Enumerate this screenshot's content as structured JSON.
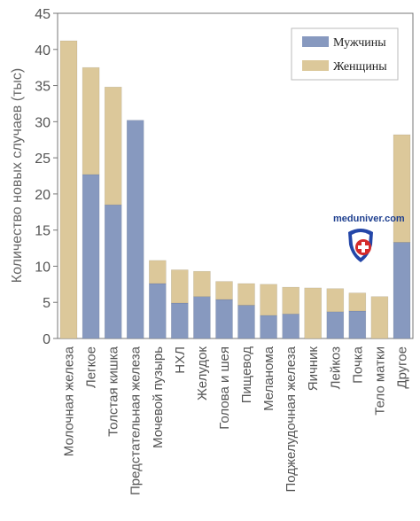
{
  "chart_data": {
    "type": "bar",
    "stacked": true,
    "ylabel": "Количество новых случаев (тыс)",
    "ylim": [
      0,
      45
    ],
    "yticks": [
      0,
      5,
      10,
      15,
      20,
      25,
      30,
      35,
      40,
      45
    ],
    "grid": false,
    "legend_position": "top-right",
    "categories": [
      "Молочная железа",
      "Легкое",
      "Толстая кишка",
      "Предстательная железа",
      "Мочевой пузырь",
      "НХЛ",
      "Желудок",
      "Голова и шея",
      "Пищевод",
      "Меланома",
      "Поджелудочная железа",
      "Яичник",
      "Лейкоз",
      "Почка",
      "Тело матки",
      "Другое"
    ],
    "series": [
      {
        "name": "Мужчины",
        "color": "#8799bf",
        "values": [
          0,
          22.7,
          18.5,
          30.2,
          7.6,
          4.9,
          5.8,
          5.4,
          4.6,
          3.2,
          3.4,
          0,
          3.7,
          3.8,
          0,
          13.3
        ]
      },
      {
        "name": "Женщины",
        "color": "#dcc89a",
        "values": [
          41.2,
          14.8,
          16.3,
          0,
          3.2,
          4.6,
          3.5,
          2.5,
          3.0,
          4.3,
          3.7,
          7.0,
          3.2,
          2.5,
          5.8,
          14.9
        ]
      }
    ]
  },
  "watermark": {
    "text": "meduniver.com",
    "icon": "shield-cross-icon",
    "shield_color": "#2346a8",
    "accent_color": "#d42b2b"
  }
}
